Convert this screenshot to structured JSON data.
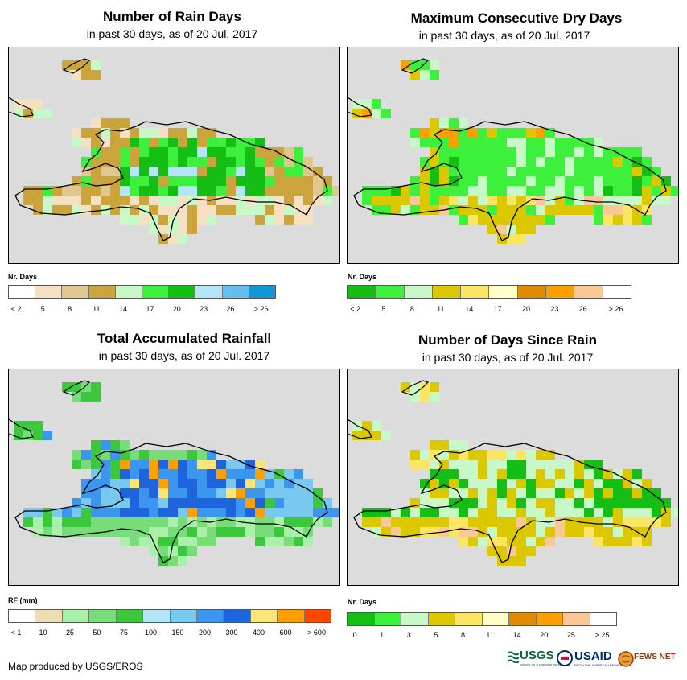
{
  "credit": "Map produced by USGS/EROS",
  "logos": {
    "usgs": "USGS",
    "usgs_tagline": "science for a changing world",
    "usaid": "USAID",
    "usaid_tagline": "FROM THE AMERICAN PEOPLE",
    "fews": "FEWS NET"
  },
  "colors": {
    "map_background": "#dcdcdc",
    "coast": "#000000"
  },
  "panels": [
    {
      "id": "rain-days",
      "title": "Number of Rain Days",
      "subtitle": "in past 30 days, as of 20 Jul. 2017",
      "legend_title": "Nr. Days",
      "legend_colors": [
        "#ffffff",
        "#f5e1c2",
        "#e1c690",
        "#cca43c",
        "#c8f7c8",
        "#3cf03c",
        "#14be14",
        "#b4e6fa",
        "#64bef0",
        "#1496d2"
      ],
      "legend_labels": [
        "< 2",
        "5",
        "8",
        "11",
        "14",
        "17",
        "20",
        "23",
        "26",
        "> 26"
      ]
    },
    {
      "id": "dry-days",
      "title": "Maximum Consecutive Dry Days",
      "subtitle": "in past 30 days, as of 20 Jul. 2017",
      "legend_title": "Nr. Days",
      "legend_colors": [
        "#14be14",
        "#3cf03c",
        "#c8f7c8",
        "#dcc800",
        "#fae664",
        "#ffffc8",
        "#e18c00",
        "#faa000",
        "#fac896",
        "#ffffff"
      ],
      "legend_labels": [
        "< 2",
        "5",
        "8",
        "11",
        "14",
        "17",
        "20",
        "23",
        "26",
        "> 26"
      ]
    },
    {
      "id": "rainfall",
      "title": "Total Accumulated Rainfall",
      "subtitle": "in past 30 days, as of 20 Jul. 2017",
      "legend_title": "RF (mm)",
      "legend_colors": [
        "#ffffff",
        "#f0dcb4",
        "#aaf0aa",
        "#78dc78",
        "#3cc83c",
        "#b4e6fa",
        "#78c8f0",
        "#3c96f0",
        "#1e64dc",
        "#fae678",
        "#faa000",
        "#ff4600"
      ],
      "legend_labels": [
        "< 1",
        "10",
        "25",
        "50",
        "75",
        "100",
        "150",
        "200",
        "300",
        "400",
        "600",
        "> 600"
      ]
    },
    {
      "id": "since-rain",
      "title": "Number of Days Since Rain",
      "subtitle": "in past 30 days, as of 20 Jul. 2017",
      "legend_title": "Nr. Days",
      "legend_colors": [
        "#14be14",
        "#3cf03c",
        "#c8f7c8",
        "#dcc800",
        "#fae664",
        "#ffffc8",
        "#e18c00",
        "#faa000",
        "#fac896",
        "#ffffff"
      ],
      "legend_labels": [
        "0",
        "1",
        "3",
        "5",
        "8",
        "11",
        "14",
        "20",
        "25",
        "> 25"
      ]
    }
  ]
}
